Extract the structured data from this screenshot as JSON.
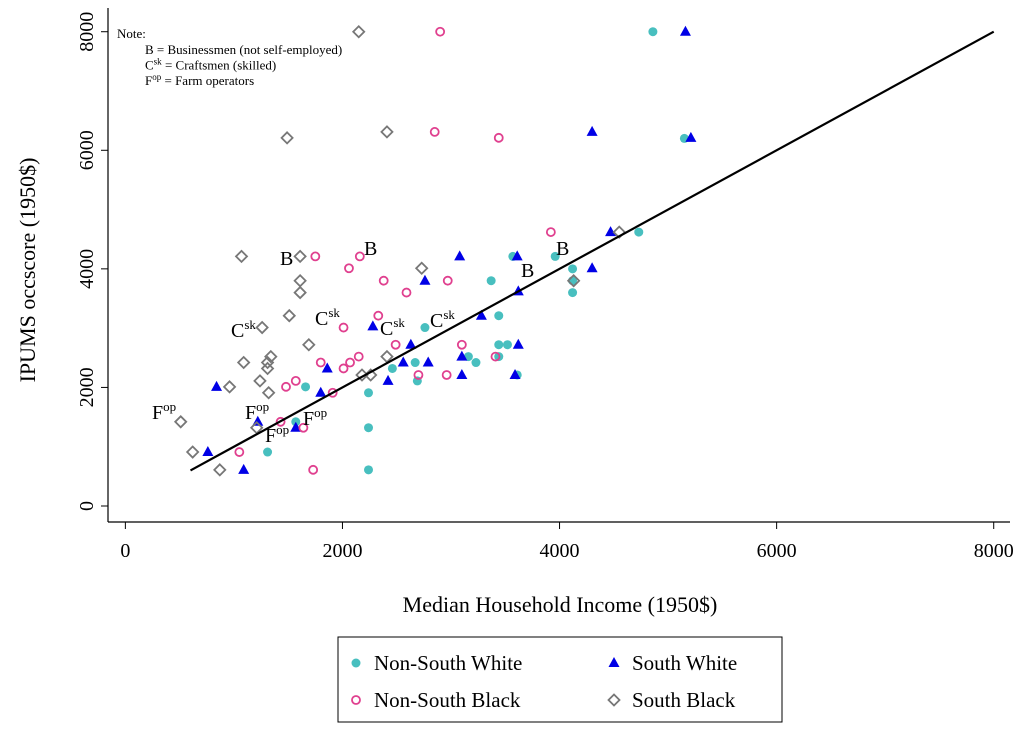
{
  "chart_data": {
    "type": "scatter",
    "x_label": "Median Household Income (1950$)",
    "y_label": "IPUMS occscore (1950$)",
    "xlim": [
      -160,
      8150
    ],
    "ylim": [
      -270,
      8400
    ],
    "xticks": [
      0,
      2000,
      4000,
      6000,
      8000
    ],
    "yticks": [
      0,
      2000,
      4000,
      6000,
      8000
    ],
    "fit_line": {
      "color": "#000000",
      "x": [
        600,
        8000
      ],
      "y": [
        600,
        8000
      ]
    },
    "note": {
      "title": "Note:",
      "lines": [
        {
          "text": "B",
          "rest": " = Businessmen (not self-employed)"
        },
        {
          "text": "C",
          "sup": "sk",
          "rest": " = Craftsmen (skilled)"
        },
        {
          "text": "F",
          "sup": "op",
          "rest": " = Farm operators"
        }
      ]
    },
    "series": [
      {
        "name": "Non-South White",
        "color": "#48bfbf",
        "marker": "circle-filled",
        "labels": [
          {
            "text": "B"
          },
          {
            "text": "C",
            "sup": "sk"
          },
          {
            "text": "F",
            "sup": "op"
          }
        ],
        "x": [
          4860,
          5150,
          4730,
          3960,
          3570,
          4120,
          4120,
          4120,
          3370,
          3440,
          2760,
          3440,
          3520,
          3160,
          3440,
          3230,
          2670,
          3610,
          2460,
          2690,
          1660,
          2240,
          1570,
          1310,
          2240,
          2240
        ],
        "y": [
          8000,
          6200,
          4620,
          4210,
          4210,
          4000,
          3800,
          3600,
          3800,
          3210,
          3010,
          2720,
          2720,
          2520,
          2520,
          2420,
          2420,
          2210,
          2320,
          2110,
          2010,
          1910,
          1420,
          910,
          1320,
          610
        ]
      },
      {
        "name": "South White",
        "color": "#0000e6",
        "marker": "triangle",
        "labels": [
          {
            "text": "B"
          },
          {
            "text": "C",
            "sup": "sk"
          },
          {
            "text": "F",
            "sup": "op"
          }
        ],
        "x": [
          5160,
          4300,
          5210,
          4470,
          4300,
          3610,
          3080,
          3620,
          2760,
          3280,
          2280,
          2630,
          3620,
          3100,
          2560,
          2790,
          1860,
          2420,
          3100,
          3590,
          1800,
          840,
          1220,
          1570,
          760,
          1090
        ],
        "y": [
          8000,
          6310,
          6210,
          4620,
          4010,
          4210,
          4210,
          3620,
          3800,
          3210,
          3030,
          2720,
          2720,
          2520,
          2420,
          2420,
          2320,
          2110,
          2210,
          2210,
          1910,
          2010,
          1420,
          1320,
          910,
          610
        ]
      },
      {
        "name": "Non-South Black",
        "color": "#e0408f",
        "marker": "circle-open",
        "labels": [
          {
            "text": "B"
          },
          {
            "text": "C",
            "sup": "sk"
          },
          {
            "text": "F",
            "sup": "op"
          }
        ],
        "x": [
          2900,
          2850,
          3440,
          3920,
          1750,
          2160,
          2060,
          2970,
          2380,
          2590,
          2330,
          2010,
          2490,
          3100,
          2150,
          3410,
          1800,
          2070,
          2010,
          1570,
          1480,
          2700,
          2960,
          1910,
          1640,
          1430,
          1050,
          1730
        ],
        "y": [
          8000,
          6310,
          6210,
          4620,
          4210,
          4210,
          4010,
          3800,
          3800,
          3600,
          3210,
          3010,
          2720,
          2720,
          2520,
          2520,
          2420,
          2420,
          2320,
          2110,
          2010,
          2210,
          2210,
          1910,
          1320,
          1420,
          910,
          610
        ]
      },
      {
        "name": "South Black",
        "color": "#777777",
        "marker": "diamond-open",
        "labels": [
          {
            "text": "B"
          },
          {
            "text": "C",
            "sup": "sk"
          },
          {
            "text": "F",
            "sup": "op"
          }
        ],
        "x": [
          2150,
          2410,
          1490,
          4550,
          1070,
          1610,
          2730,
          1610,
          1610,
          4130,
          1510,
          1260,
          1690,
          1090,
          1340,
          1310,
          1310,
          2410,
          2180,
          2260,
          1240,
          960,
          1320,
          510,
          1210,
          620,
          870
        ],
        "y": [
          8000,
          6310,
          6210,
          4620,
          4210,
          4210,
          4010,
          3800,
          3600,
          3800,
          3210,
          3010,
          2720,
          2420,
          2520,
          2420,
          2320,
          2520,
          2210,
          2210,
          2110,
          2010,
          1910,
          1420,
          1320,
          910,
          610
        ]
      }
    ]
  }
}
